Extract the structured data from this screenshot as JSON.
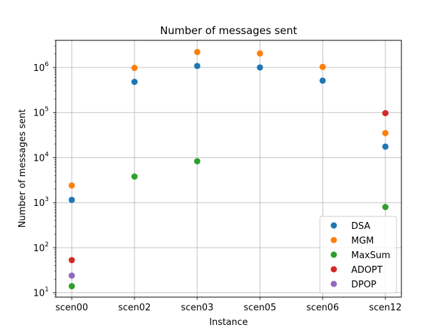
{
  "chart_data": {
    "type": "scatter",
    "title": "Number of messages sent",
    "xlabel": "Instance",
    "ylabel": "Number of messages sent",
    "yscale": "log",
    "ylim": [
      8,
      4000000
    ],
    "grid": true,
    "legend_position": "lower right",
    "categories": [
      "scen00",
      "scen02",
      "scen03",
      "scen05",
      "scen06",
      "scen12"
    ],
    "y_ticks": [
      {
        "value": 10,
        "mantissa": "10",
        "exp": "1"
      },
      {
        "value": 100,
        "mantissa": "10",
        "exp": "2"
      },
      {
        "value": 1000,
        "mantissa": "10",
        "exp": "3"
      },
      {
        "value": 10000,
        "mantissa": "10",
        "exp": "4"
      },
      {
        "value": 100000,
        "mantissa": "10",
        "exp": "5"
      },
      {
        "value": 1000000,
        "mantissa": "10",
        "exp": "6"
      }
    ],
    "series": [
      {
        "name": "DSA",
        "color": "#1f77b4",
        "values": [
          1150,
          480000,
          1080000,
          1000000,
          510000,
          17500
        ]
      },
      {
        "name": "MGM",
        "color": "#ff7f0e",
        "values": [
          2400,
          980000,
          2200000,
          2050000,
          1030000,
          35000
        ]
      },
      {
        "name": "MaxSum",
        "color": "#2ca02c",
        "values": [
          14,
          3800,
          8300,
          null,
          null,
          800
        ]
      },
      {
        "name": "ADOPT",
        "color": "#d62728",
        "values": [
          53,
          null,
          null,
          null,
          null,
          97000
        ]
      },
      {
        "name": "DPOP",
        "color": "#9467bd",
        "values": [
          24,
          null,
          null,
          null,
          null,
          null
        ]
      }
    ]
  }
}
